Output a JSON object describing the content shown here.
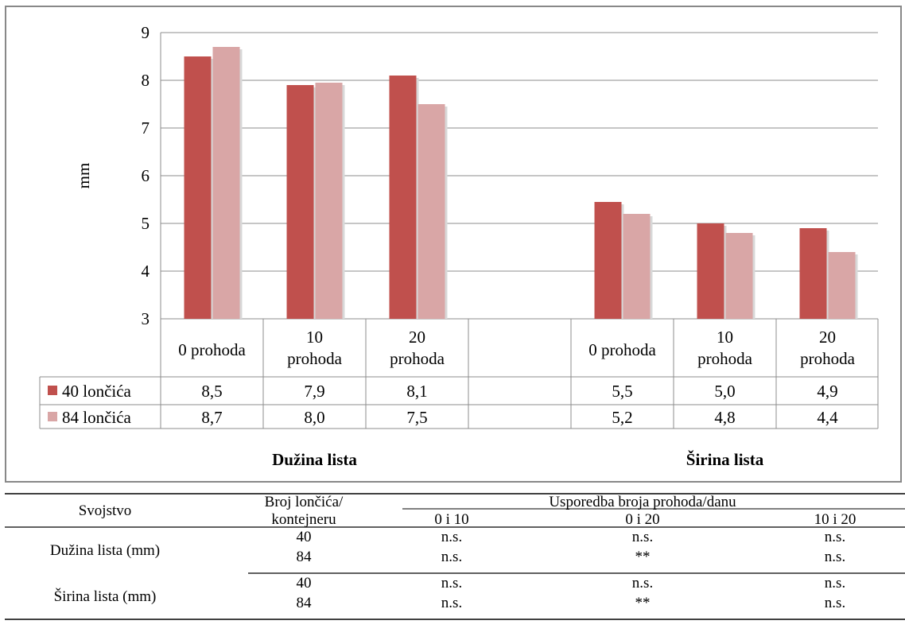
{
  "chart_data": {
    "type": "bar",
    "ylabel": "mm",
    "ylim": [
      3,
      9
    ],
    "yticks": [
      3,
      4,
      5,
      6,
      7,
      8,
      9
    ],
    "grid": true,
    "groups": [
      {
        "label": "Dužina lista",
        "categories": [
          "0 prohoda",
          "10\nprohoda",
          "20\nprohoda"
        ]
      },
      {
        "label": "Širina lista",
        "categories": [
          "0 prohoda",
          "10\nprohoda",
          "20\nprohoda"
        ]
      }
    ],
    "series": [
      {
        "name": "40 lončića",
        "color": "#c0504d",
        "values": [
          8.5,
          7.9,
          8.1,
          5.45,
          5.0,
          4.9
        ],
        "labels": [
          "8,5",
          "7,9",
          "8,1",
          "5,5",
          "5,0",
          "4,9"
        ]
      },
      {
        "name": "84 lončića",
        "color": "#d9a6a6",
        "values": [
          8.7,
          7.95,
          7.5,
          5.2,
          4.8,
          4.4
        ],
        "labels": [
          "8,7",
          "8,0",
          "7,5",
          "5,2",
          "4,8",
          "4,4"
        ]
      }
    ]
  },
  "table": {
    "header": {
      "property": "Svojstvo",
      "pots_line1": "Broj lončića/",
      "pots_line2": "kontejneru",
      "comparison": "Usporedba broja prohoda/danu",
      "cols": [
        "0 i 10",
        "0 i 20",
        "10 i 20"
      ]
    },
    "rows": [
      {
        "property": "Dužina lista (mm)",
        "sub": [
          {
            "pots": "40",
            "vals": [
              "n.s.",
              "n.s.",
              "n.s."
            ]
          },
          {
            "pots": "84",
            "vals": [
              "n.s.",
              "**",
              "n.s."
            ]
          }
        ]
      },
      {
        "property": "Širina lista (mm)",
        "sub": [
          {
            "pots": "40",
            "vals": [
              "n.s.",
              "n.s.",
              "n.s."
            ]
          },
          {
            "pots": "84",
            "vals": [
              "n.s.",
              "**",
              "n.s."
            ]
          }
        ]
      }
    ]
  }
}
